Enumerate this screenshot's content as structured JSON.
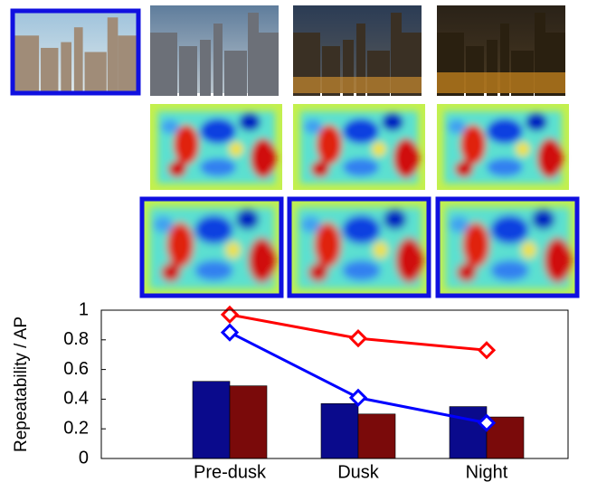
{
  "chart_data": {
    "type": "bar",
    "y_label": "Repeatability / AP",
    "categories": [
      "Pre-dusk",
      "Dusk",
      "Night"
    ],
    "ylim": [
      0,
      1
    ],
    "yticks": [
      0,
      0.2,
      0.4,
      0.6,
      0.8,
      1
    ],
    "series": [
      {
        "type": "bar",
        "color": "#0a0a8c",
        "values": [
          0.52,
          0.37,
          0.35
        ]
      },
      {
        "type": "bar",
        "color": "#7a0a0a",
        "values": [
          0.49,
          0.3,
          0.28
        ]
      },
      {
        "type": "line",
        "color": "#ff0000",
        "values": [
          0.97,
          0.81,
          0.73
        ]
      },
      {
        "type": "line",
        "color": "#0000ff",
        "values": [
          0.85,
          0.41,
          0.24
        ]
      }
    ]
  }
}
